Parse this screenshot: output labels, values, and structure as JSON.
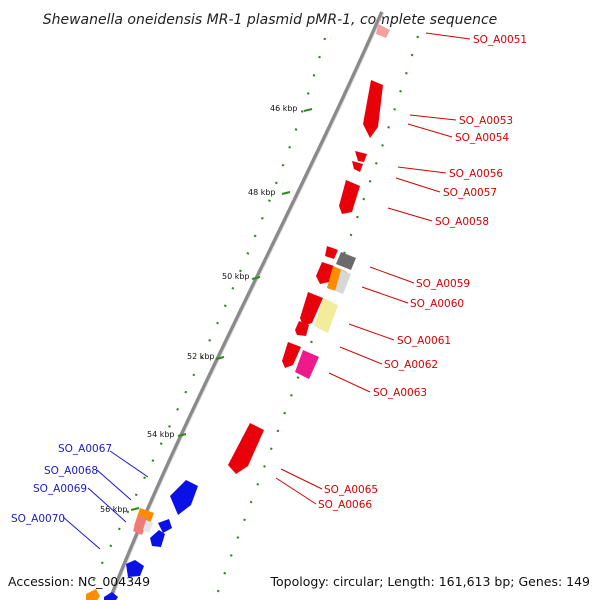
{
  "map": {
    "title": "Shewanella oneidensis MR-1 plasmid pMR-1, complete sequence",
    "accession": "Accession: NC_004349",
    "topology": "Topology: circular; Length: 161,613 bp; Genes: 149",
    "ticks": [
      {
        "label": "46 kbp"
      },
      {
        "label": "48 kbp"
      },
      {
        "label": "50 kbp"
      },
      {
        "label": "52 kbp"
      },
      {
        "label": "54 kbp"
      },
      {
        "label": "56 kbp"
      }
    ],
    "genes_forward": [
      {
        "name": "SO_A0051"
      },
      {
        "name": "SO_A0053"
      },
      {
        "name": "SO_A0054"
      },
      {
        "name": "SO_A0056"
      },
      {
        "name": "SO_A0057"
      },
      {
        "name": "SO_A0058"
      },
      {
        "name": "SO_A0059"
      },
      {
        "name": "SO_A0060"
      },
      {
        "name": "SO_A0061"
      },
      {
        "name": "SO_A0062"
      },
      {
        "name": "SO_A0063"
      },
      {
        "name": "SO_A0065"
      },
      {
        "name": "SO_A0066"
      }
    ],
    "genes_reverse": [
      {
        "name": "SO_A0067"
      },
      {
        "name": "SO_A0068"
      },
      {
        "name": "SO_A0069"
      },
      {
        "name": "SO_A0070"
      }
    ],
    "colors": {
      "forward_strand": "#e8000b",
      "reverse_strand": "#0a10e6",
      "label_forward": "#d40000",
      "label_reverse": "#1a1acc",
      "ring": "#8a8a8a",
      "dots": "#2b8a1e",
      "gray_feature": "#6b6b6b",
      "orange_feature": "#ff8c00",
      "yellow_feature": "#f2ec9c",
      "magenta_feature": "#ee1a8c",
      "pink_feature": "#f07a7a"
    }
  }
}
